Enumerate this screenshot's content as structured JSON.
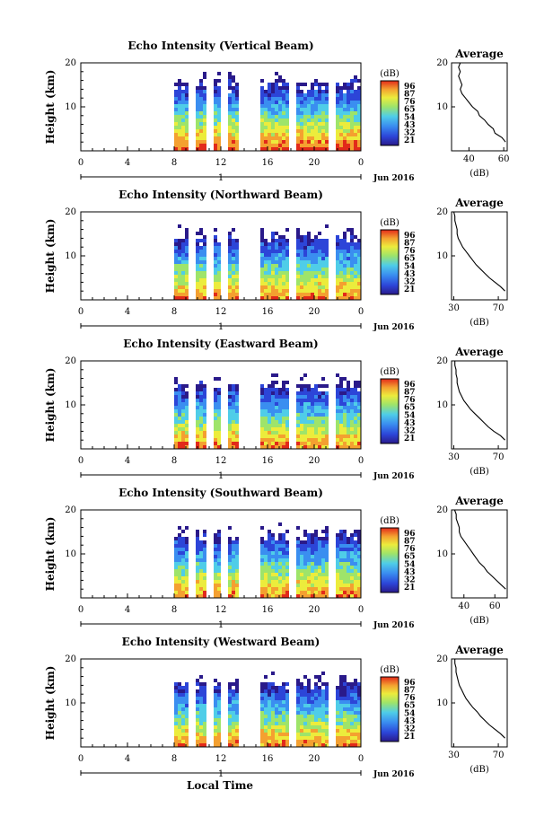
{
  "figure": {
    "xlabel": "Local Time",
    "date_label": "Jun 2016",
    "date_tick": "1",
    "colorbar_unit": "(dB)",
    "colorbar_ticks": [
      "96",
      "87",
      "76",
      "65",
      "54",
      "43",
      "32",
      "21"
    ],
    "avg_title": "Average",
    "avg_xlabel": "(dB)",
    "height_label": "Height (km)",
    "x_ticks": [
      "0",
      "4",
      "8",
      "12",
      "16",
      "20",
      "0"
    ],
    "height_ticks": [
      "20",
      "10"
    ],
    "colormap": [
      "#2a1a8a",
      "#2c45d8",
      "#3a8ef0",
      "#4fcde8",
      "#9ee46a",
      "#ecec3c",
      "#f4a030",
      "#e22a1a"
    ]
  },
  "chart_data": [
    {
      "type": "heatmap",
      "title": "Echo Intensity (Vertical Beam)",
      "data_start_hour": 8,
      "x_range_hours": [
        0,
        24
      ],
      "ylim_km": [
        0,
        20
      ],
      "clim_db": [
        21,
        96
      ],
      "gaps_hours": [
        9.6,
        11.1,
        12.4,
        13.7,
        14.4,
        15.2,
        18.2,
        21.4
      ],
      "average": {
        "x_ticks": [
          "40",
          "60"
        ],
        "xlim": [
          30,
          62
        ],
        "profile": [
          [
            2,
            61
          ],
          [
            3,
            59
          ],
          [
            4,
            55
          ],
          [
            5,
            54
          ],
          [
            6,
            51
          ],
          [
            7,
            49
          ],
          [
            8,
            46
          ],
          [
            9,
            45
          ],
          [
            10,
            42
          ],
          [
            11,
            40
          ],
          [
            12,
            38
          ],
          [
            13,
            36
          ],
          [
            14,
            35
          ],
          [
            15,
            36
          ],
          [
            16,
            35
          ],
          [
            17,
            34
          ],
          [
            18,
            35
          ],
          [
            19,
            34
          ],
          [
            20,
            35
          ]
        ]
      }
    },
    {
      "type": "heatmap",
      "title": "Echo Intensity (Northward Beam)",
      "data_start_hour": 8,
      "x_range_hours": [
        0,
        24
      ],
      "ylim_km": [
        0,
        20
      ],
      "clim_db": [
        21,
        96
      ],
      "gaps_hours": [
        9.6,
        11.1,
        12.4,
        13.7,
        14.4,
        15.2,
        18.2,
        21.4
      ],
      "average": {
        "x_ticks": [
          "30",
          "70"
        ],
        "xlim": [
          28,
          78
        ],
        "profile": [
          [
            2,
            76
          ],
          [
            3,
            72
          ],
          [
            4,
            67
          ],
          [
            5,
            62
          ],
          [
            6,
            58
          ],
          [
            7,
            54
          ],
          [
            8,
            50
          ],
          [
            9,
            47
          ],
          [
            10,
            44
          ],
          [
            11,
            41
          ],
          [
            12,
            38
          ],
          [
            13,
            36
          ],
          [
            14,
            34
          ],
          [
            15,
            33
          ],
          [
            16,
            33
          ],
          [
            17,
            32
          ],
          [
            18,
            31
          ],
          [
            19,
            31
          ],
          [
            20,
            30
          ]
        ]
      }
    },
    {
      "type": "heatmap",
      "title": "Echo Intensity (Eastward Beam)",
      "data_start_hour": 8,
      "x_range_hours": [
        0,
        24
      ],
      "ylim_km": [
        0,
        20
      ],
      "clim_db": [
        21,
        96
      ],
      "gaps_hours": [
        9.6,
        11.1,
        12.4,
        13.7,
        14.4,
        15.2,
        18.2,
        21.4
      ],
      "average": {
        "x_ticks": [
          "30",
          "70"
        ],
        "xlim": [
          28,
          78
        ],
        "profile": [
          [
            2,
            76
          ],
          [
            3,
            72
          ],
          [
            4,
            66
          ],
          [
            5,
            61
          ],
          [
            6,
            57
          ],
          [
            7,
            53
          ],
          [
            8,
            49
          ],
          [
            9,
            45
          ],
          [
            10,
            42
          ],
          [
            11,
            39
          ],
          [
            12,
            37
          ],
          [
            13,
            35
          ],
          [
            14,
            34
          ],
          [
            15,
            33
          ],
          [
            16,
            33
          ],
          [
            17,
            32
          ],
          [
            18,
            32
          ],
          [
            19,
            31
          ],
          [
            20,
            31
          ]
        ]
      }
    },
    {
      "type": "heatmap",
      "title": "Echo Intensity (Southward Beam)",
      "data_start_hour": 8,
      "x_range_hours": [
        0,
        24
      ],
      "ylim_km": [
        0,
        20
      ],
      "clim_db": [
        21,
        96
      ],
      "gaps_hours": [
        9.6,
        11.1,
        12.4,
        13.7,
        14.4,
        15.2,
        18.2,
        21.4
      ],
      "average": {
        "x_ticks": [
          "40",
          "60"
        ],
        "xlim": [
          32,
          68
        ],
        "profile": [
          [
            2,
            67
          ],
          [
            3,
            64
          ],
          [
            4,
            61
          ],
          [
            5,
            58
          ],
          [
            6,
            55
          ],
          [
            7,
            53
          ],
          [
            8,
            50
          ],
          [
            9,
            48
          ],
          [
            10,
            46
          ],
          [
            11,
            44
          ],
          [
            12,
            42
          ],
          [
            13,
            40
          ],
          [
            14,
            38
          ],
          [
            15,
            37
          ],
          [
            16,
            37
          ],
          [
            17,
            36
          ],
          [
            18,
            35
          ],
          [
            19,
            35
          ],
          [
            20,
            34
          ]
        ]
      }
    },
    {
      "type": "heatmap",
      "title": "Echo Intensity (Westward Beam)",
      "data_start_hour": 8,
      "x_range_hours": [
        0,
        24
      ],
      "ylim_km": [
        0,
        20
      ],
      "clim_db": [
        21,
        96
      ],
      "gaps_hours": [
        9.6,
        11.1,
        12.4,
        13.7,
        14.4,
        15.2,
        18.2,
        21.4
      ],
      "average": {
        "x_ticks": [
          "30",
          "70"
        ],
        "xlim": [
          28,
          78
        ],
        "profile": [
          [
            2,
            76
          ],
          [
            3,
            72
          ],
          [
            4,
            67
          ],
          [
            5,
            62
          ],
          [
            6,
            58
          ],
          [
            7,
            54
          ],
          [
            8,
            51
          ],
          [
            9,
            47
          ],
          [
            10,
            44
          ],
          [
            11,
            41
          ],
          [
            12,
            39
          ],
          [
            13,
            37
          ],
          [
            14,
            35
          ],
          [
            15,
            34
          ],
          [
            16,
            33
          ],
          [
            17,
            32
          ],
          [
            18,
            32
          ],
          [
            19,
            31
          ],
          [
            20,
            31
          ]
        ]
      }
    }
  ]
}
